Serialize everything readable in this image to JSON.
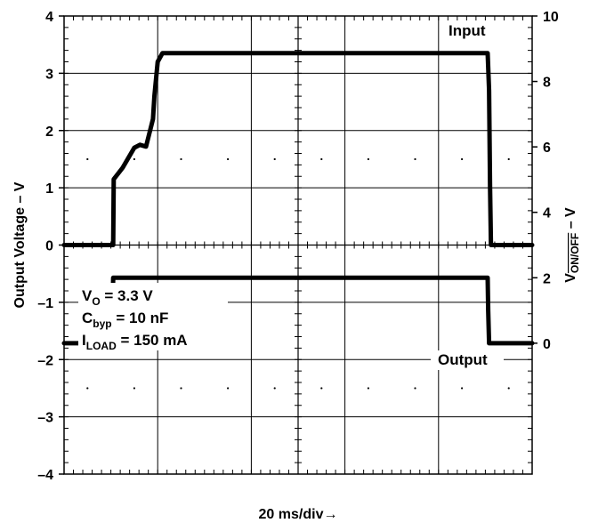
{
  "chart_data": {
    "type": "line",
    "xlabel": "20 ms/div→",
    "ylabel_left": "Output Voltage – V",
    "ylabel_right": {
      "base": "V",
      "sub": "ON/OFF",
      "suffix": " – V"
    },
    "left_axis": {
      "ylim": [
        -4,
        4
      ],
      "ticks": [
        "4",
        "3",
        "2",
        "1",
        "0",
        "–1",
        "–2",
        "–3",
        "–4"
      ]
    },
    "right_axis": {
      "ylim": [
        -4,
        10
      ],
      "ticks": [
        "10",
        "8",
        "6",
        "4",
        "2",
        "0"
      ]
    },
    "x_divisions": 10,
    "grid": true,
    "series": [
      {
        "name": "Input",
        "axis": "left",
        "x": [
          0,
          1.02,
          1.05,
          1.06,
          1.25,
          1.5,
          1.62,
          1.75,
          1.9,
          1.93,
          2.0,
          2.1,
          3.5,
          5.0,
          7.0,
          9.05,
          9.08,
          9.1,
          9.12,
          10.0
        ],
        "y": [
          0,
          0,
          0,
          1.15,
          1.35,
          1.7,
          1.75,
          1.72,
          2.2,
          2.6,
          3.2,
          3.35,
          3.35,
          3.35,
          3.35,
          3.35,
          2.7,
          1.0,
          0,
          0
        ]
      },
      {
        "name": "Output",
        "axis": "right",
        "x": [
          0,
          1.02,
          1.03,
          1.05,
          2.0,
          4.0,
          6.0,
          8.0,
          9.0,
          9.05,
          9.06,
          9.08,
          10.0
        ],
        "y": [
          0,
          0,
          0.8,
          2.0,
          2.0,
          2.0,
          2.0,
          2.0,
          2.0,
          2.0,
          1.0,
          0,
          0
        ]
      }
    ],
    "annotations": {
      "input_label": "Input",
      "output_label": "Output",
      "lines": [
        {
          "base": "V",
          "sub": "O",
          "rest": " = 3.3 V"
        },
        {
          "base": "C",
          "sub": "byp",
          "rest": " = 10 nF"
        },
        {
          "base": "I",
          "sub": "LOAD",
          "rest": " = 150 mA"
        }
      ]
    }
  }
}
